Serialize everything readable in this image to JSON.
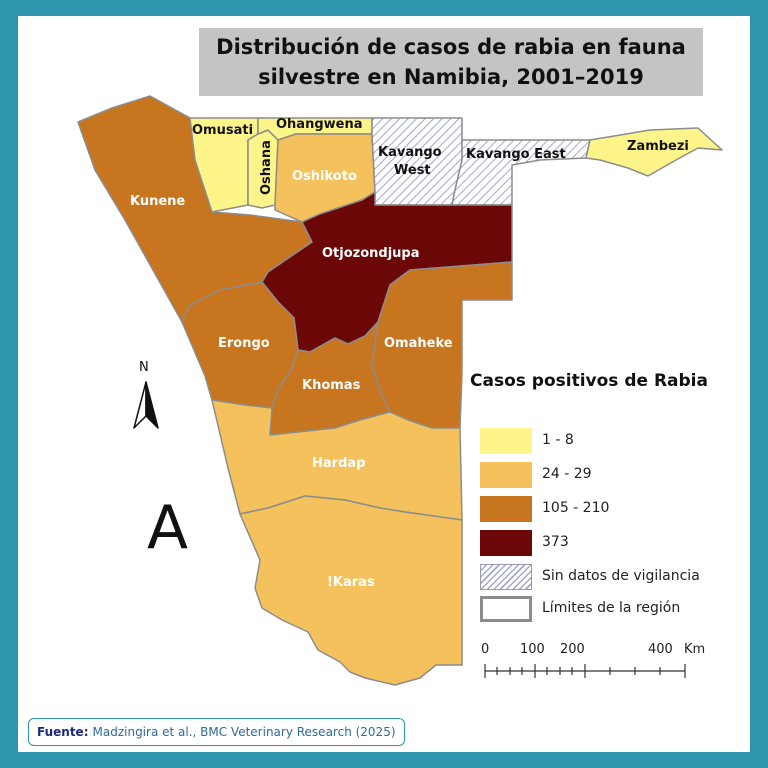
{
  "title": {
    "line1": "Distribución de casos de rabia en fauna",
    "line2": "silvestre en Namibia, 2001–2019"
  },
  "colors": {
    "frame": "#2f97ad",
    "class_1_8": "#fef58a",
    "class_24_29": "#f4c15c",
    "class_105_210": "#c8751f",
    "class_373": "#6b0707",
    "no_data_hatch": "#a4a8c8",
    "boundary": "#8c8c8c"
  },
  "regions": {
    "omusati": "Omusati",
    "ohangwena": "Ohangwena",
    "oshana": "Oshana",
    "oshikoto": "Oshikoto",
    "kavango_west_1": "Kavango",
    "kavango_west_2": "West",
    "kavango_east": "Kavango East",
    "zambezi": "Zambezi",
    "kunene": "Kunene",
    "otjozondjupa": "Otjozondjupa",
    "erongo": "Erongo",
    "omaheke": "Omaheke",
    "khomas": "Khomas",
    "hardap": "Hardap",
    "karas": "!Karas"
  },
  "north_arrow": {
    "label": "N"
  },
  "panel_letter": "A",
  "legend": {
    "title": "Casos positivos de Rabia",
    "items": [
      {
        "label": "1 - 8",
        "style": "class_1_8"
      },
      {
        "label": "24 - 29",
        "style": "class_24_29"
      },
      {
        "label": "105 - 210",
        "style": "class_105_210"
      },
      {
        "label": "373",
        "style": "class_373"
      },
      {
        "label": "Sin datos de vigilancia",
        "style": "hatch"
      },
      {
        "label": "Límites de la región",
        "style": "boundary"
      }
    ]
  },
  "scale_bar": {
    "ticks": [
      "0",
      "100",
      "200",
      "400"
    ],
    "unit": "Km"
  },
  "source": {
    "label": "Fuente:",
    "text": "Madzingira et al., BMC Veterinary Research (2025)"
  }
}
